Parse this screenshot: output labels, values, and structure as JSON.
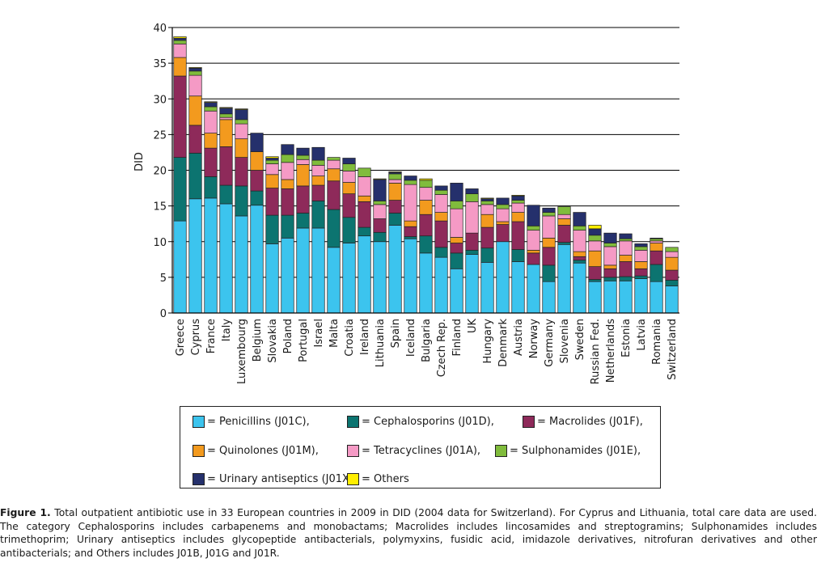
{
  "chart_data": {
    "type": "bar",
    "stacked": true,
    "title": "",
    "xlabel": "",
    "ylabel": "DID",
    "ylim": [
      0,
      40
    ],
    "yticks": [
      0,
      5,
      10,
      15,
      20,
      25,
      30,
      35,
      40
    ],
    "grid": true,
    "categories": [
      "Greece",
      "Cyprus",
      "France",
      "Italy",
      "Luxembourg",
      "Belgium",
      "Slovakia",
      "Poland",
      "Portugal",
      "Israel",
      "Malta",
      "Croatia",
      "Ireland",
      "Lithuania",
      "Spain",
      "Iceland",
      "Bulgaria",
      "Czech Rep.",
      "Finland",
      "UK",
      "Hungary",
      "Denmark",
      "Austria",
      "Norway",
      "Germany",
      "Slovenia",
      "Sweden",
      "Russian Fed.",
      "Netherlands",
      "Estonia",
      "Latvia",
      "Romania",
      "Switzerland"
    ],
    "series": [
      {
        "name": "Penicillins (J01C)",
        "color": "#3cc4ee",
        "values": [
          12.9,
          16.0,
          16.1,
          15.3,
          13.6,
          15.1,
          9.7,
          10.5,
          11.9,
          11.9,
          9.2,
          9.8,
          10.8,
          10.0,
          12.3,
          10.4,
          8.4,
          7.8,
          6.2,
          8.2,
          7.1,
          10.0,
          7.2,
          6.8,
          4.4,
          9.6,
          7.0,
          4.4,
          4.5,
          4.5,
          4.8,
          4.4,
          3.8
        ]
      },
      {
        "name": "Cephalosporins (J01D)",
        "color": "#0c7470",
        "values": [
          8.9,
          6.4,
          3.0,
          2.6,
          4.2,
          2.0,
          4.0,
          3.2,
          2.1,
          3.8,
          5.3,
          3.6,
          1.2,
          1.3,
          1.7,
          0.3,
          2.4,
          1.4,
          2.2,
          0.6,
          2.0,
          0.0,
          1.7,
          0.0,
          2.3,
          0.3,
          0.4,
          0.3,
          0.5,
          0.6,
          0.4,
          2.4,
          0.8
        ]
      },
      {
        "name": "Macrolides (J01F)",
        "color": "#8e2a5a",
        "values": [
          11.4,
          3.9,
          4.0,
          5.4,
          4.0,
          2.9,
          3.8,
          3.7,
          3.8,
          2.2,
          4.0,
          3.3,
          3.6,
          1.9,
          1.8,
          1.4,
          3.0,
          3.7,
          1.4,
          2.4,
          2.9,
          2.4,
          3.9,
          1.6,
          2.5,
          2.4,
          0.5,
          1.8,
          1.2,
          2.1,
          1.0,
          1.9,
          1.4
        ]
      },
      {
        "name": "Quinolones (J01M)",
        "color": "#f39a1e",
        "values": [
          2.6,
          4.1,
          2.1,
          3.8,
          2.6,
          2.6,
          1.9,
          1.3,
          3.0,
          1.3,
          1.7,
          1.6,
          0.8,
          0.0,
          2.4,
          0.8,
          2.0,
          1.2,
          0.8,
          0.0,
          1.8,
          0.4,
          1.3,
          0.4,
          1.3,
          0.9,
          0.7,
          2.2,
          0.5,
          0.9,
          1.0,
          1.1,
          1.8
        ]
      },
      {
        "name": "Tetracyclines (J01A)",
        "color": "#f59ac5",
        "values": [
          1.9,
          2.9,
          3.1,
          0.3,
          2.1,
          0.0,
          1.5,
          2.4,
          0.7,
          1.5,
          1.2,
          1.6,
          2.7,
          2.0,
          0.5,
          5.1,
          1.8,
          2.5,
          4.0,
          4.4,
          1.4,
          1.8,
          1.3,
          2.8,
          3.1,
          0.6,
          3.0,
          1.4,
          2.6,
          2.0,
          1.6,
          0.3,
          0.8
        ]
      },
      {
        "name": "Sulphonamides (J01E)",
        "color": "#80bc3c",
        "values": [
          0.5,
          0.6,
          0.6,
          0.5,
          0.6,
          0.0,
          0.5,
          1.1,
          0.6,
          0.7,
          0.4,
          1.0,
          1.2,
          0.5,
          0.8,
          0.6,
          1.0,
          0.6,
          1.1,
          1.1,
          0.5,
          0.6,
          0.4,
          0.6,
          0.5,
          1.1,
          0.6,
          0.8,
          0.5,
          0.3,
          0.5,
          0.3,
          0.6
        ]
      },
      {
        "name": "Urinary antiseptics (J01X)",
        "color": "#25306c",
        "values": [
          0.3,
          0.4,
          0.6,
          0.8,
          1.4,
          2.6,
          0.3,
          1.4,
          1.0,
          1.8,
          0.0,
          0.8,
          0.0,
          3.0,
          0.2,
          0.6,
          0.0,
          0.6,
          2.5,
          0.7,
          0.3,
          0.9,
          0.6,
          2.9,
          0.6,
          0.0,
          1.9,
          0.9,
          1.4,
          0.7,
          0.4,
          0.1,
          0.0
        ]
      },
      {
        "name": "Others",
        "color": "#ffee00",
        "values": [
          0.2,
          0.1,
          0.1,
          0.1,
          0.1,
          0.0,
          0.2,
          0.0,
          0.0,
          0.0,
          0.0,
          0.0,
          0.0,
          0.1,
          0.1,
          0.0,
          0.2,
          0.0,
          0.0,
          0.0,
          0.1,
          0.0,
          0.1,
          0.0,
          0.0,
          0.0,
          0.0,
          0.5,
          0.0,
          0.0,
          0.0,
          0.0,
          0.0
        ]
      }
    ]
  },
  "legend": {
    "prefix": "=",
    "entries": [
      {
        "label": "Penicillins (J01C),",
        "color": "#3cc4ee"
      },
      {
        "label": "Cephalosporins (J01D),",
        "color": "#0c7470"
      },
      {
        "label": "Macrolides (J01F),",
        "color": "#8e2a5a"
      },
      {
        "label": "Quinolones (J01M),",
        "color": "#f39a1e"
      },
      {
        "label": "Tetracyclines (J01A),",
        "color": "#f59ac5"
      },
      {
        "label": "Sulphonamides (J01E),",
        "color": "#80bc3c"
      },
      {
        "label": "Urinary antiseptics (J01X),",
        "color": "#25306c"
      },
      {
        "label": "Others",
        "color": "#ffee00"
      }
    ]
  },
  "caption": {
    "label": "Figure 1.",
    "text": "Total outpatient antibiotic use in 33 European countries in 2009 in DID (2004 data for Switzerland). For Cyprus and Lithuania, total care data are used. The category Cephalosporins includes carbapenems and monobactams; Macrolides includes lincosamides and streptogramins; Sulphonamides includes trimethoprim; Urinary antiseptics includes glycopeptide antibacterials, polymyxins, fusidic acid, imidazole derivatives, nitrofuran derivatives and other antibacterials; and Others includes J01B, J01G and J01R."
  }
}
